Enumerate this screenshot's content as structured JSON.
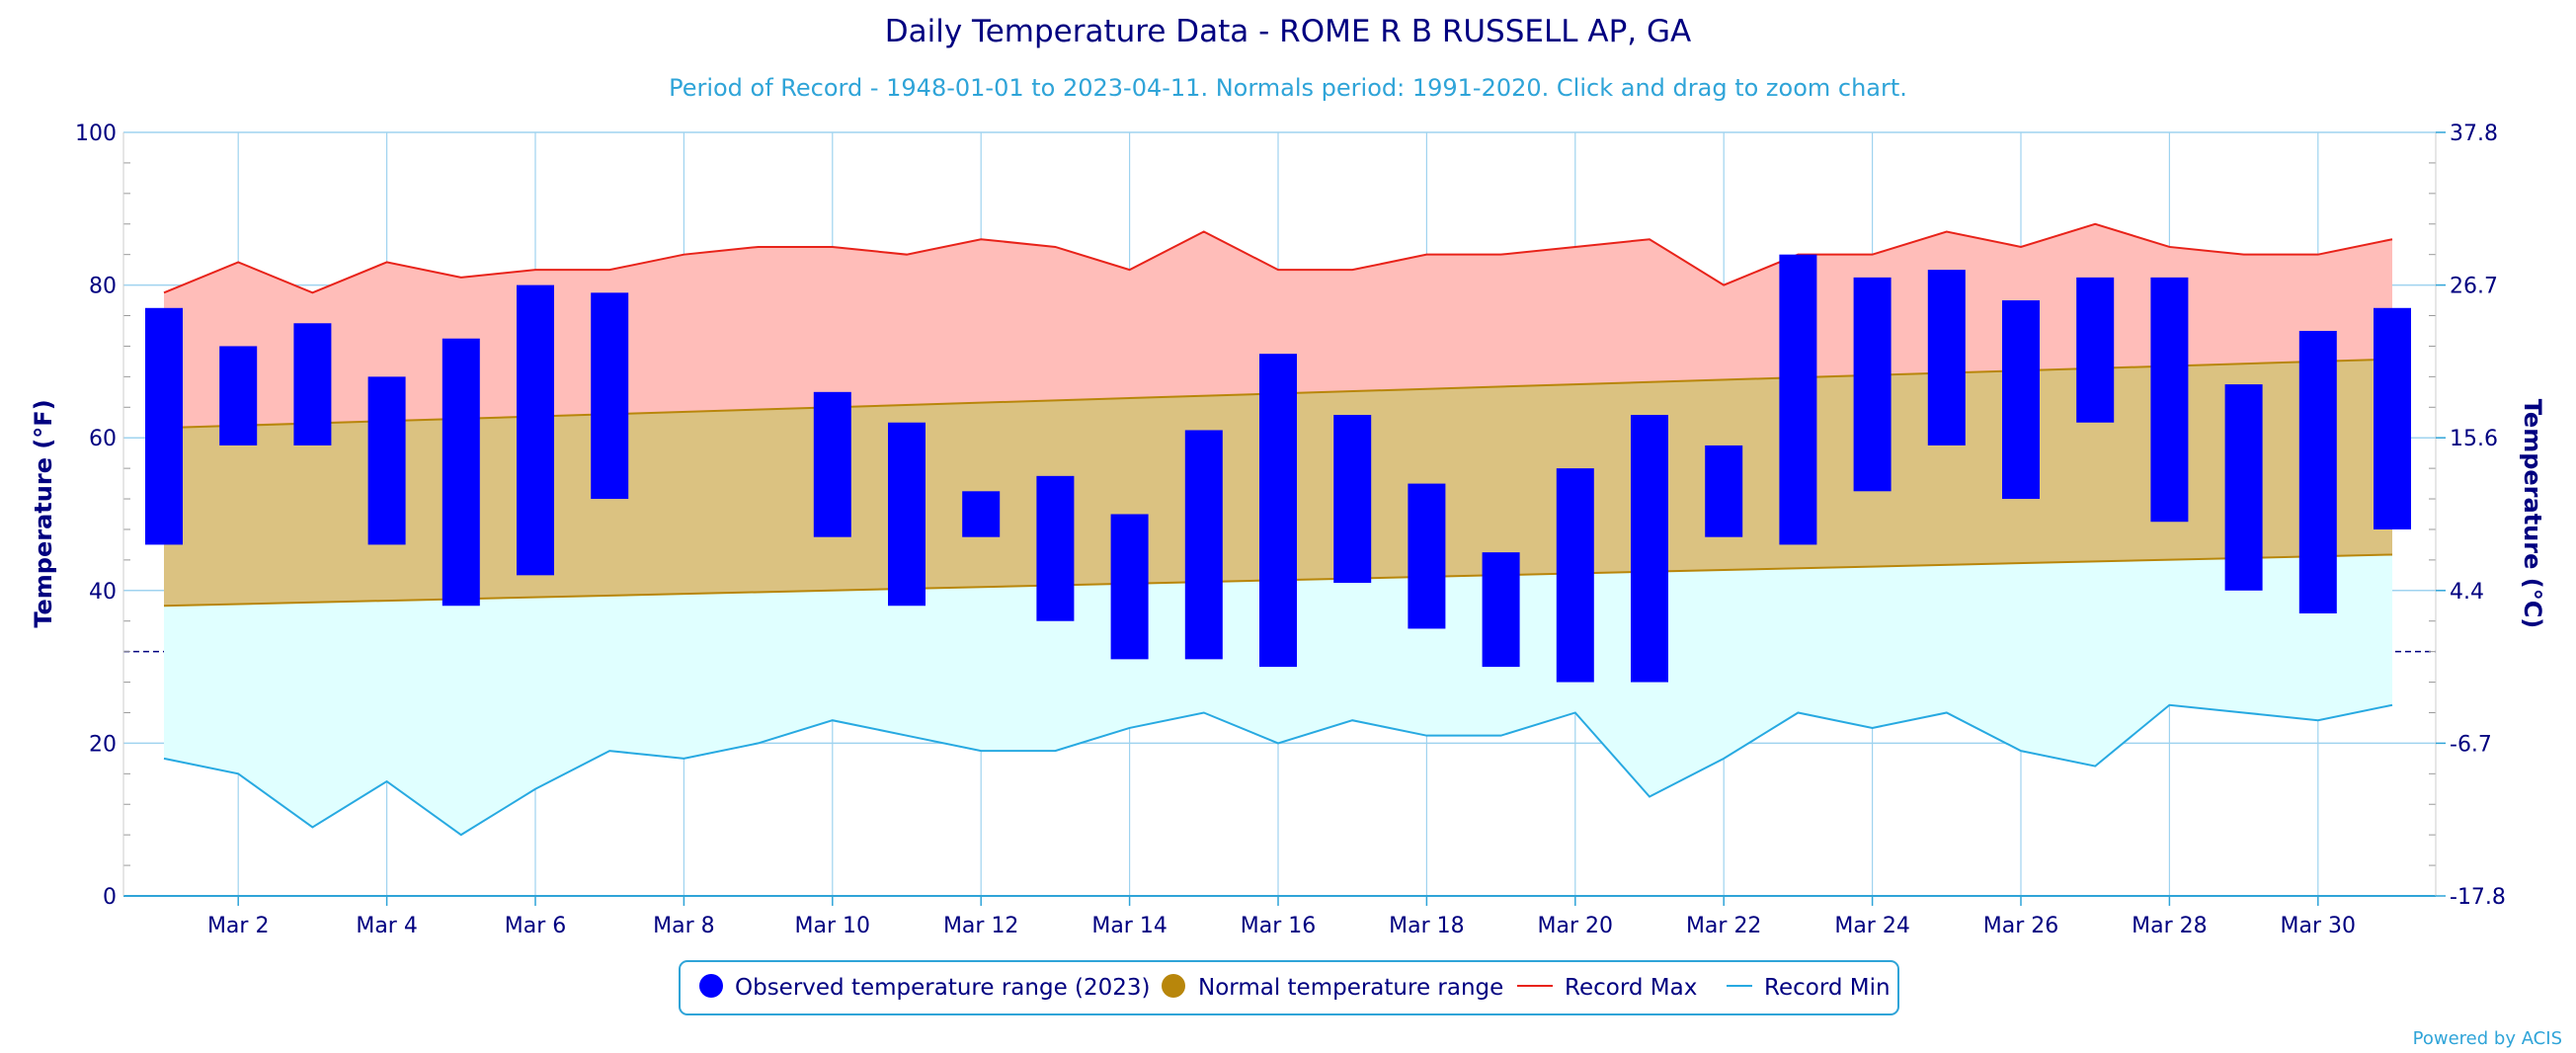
{
  "chart_data": {
    "type": "bar",
    "title": "Daily Temperature Data - ROME R B RUSSELL AP, GA",
    "subtitle": "Period of Record - 1948-01-01 to 2023-04-11. Normals period: 1991-2020. Click and drag to zoom chart.",
    "ylabel": "Temperature (°F)",
    "ylabel_right": "Temperature (°C)",
    "ylim": [
      0,
      100
    ],
    "x": [
      1,
      2,
      3,
      4,
      5,
      6,
      7,
      8,
      9,
      10,
      11,
      12,
      13,
      14,
      15,
      16,
      17,
      18,
      19,
      20,
      21,
      22,
      23,
      24,
      25,
      26,
      27,
      28,
      29,
      30,
      31
    ],
    "x_tick_labels": [
      "Mar 2",
      "Mar 4",
      "Mar 6",
      "Mar 8",
      "Mar 10",
      "Mar 12",
      "Mar 14",
      "Mar 16",
      "Mar 18",
      "Mar 20",
      "Mar 22",
      "Mar 24",
      "Mar 26",
      "Mar 28",
      "Mar 30"
    ],
    "x_tick_days": [
      2,
      4,
      6,
      8,
      10,
      12,
      14,
      16,
      18,
      20,
      22,
      24,
      26,
      28,
      30
    ],
    "y_ticks_left": [
      "0",
      "20",
      "40",
      "60",
      "80",
      "100"
    ],
    "y_ticks_right": [
      "-17.8",
      "-6.7",
      "4.4",
      "15.6",
      "26.7",
      "37.8"
    ],
    "freezing_line": 32,
    "series": [
      {
        "name": "Observed temperature range (2023)",
        "color": "#0000ff",
        "low": [
          46,
          59,
          59,
          46,
          38,
          42,
          52,
          null,
          null,
          47,
          38,
          47,
          36,
          31,
          31,
          30,
          41,
          35,
          30,
          28,
          28,
          47,
          46,
          53,
          59,
          52,
          62,
          49,
          40,
          37,
          48
        ],
        "high": [
          77,
          72,
          75,
          68,
          73,
          80,
          79,
          null,
          null,
          66,
          62,
          53,
          55,
          50,
          61,
          71,
          63,
          54,
          45,
          56,
          63,
          59,
          84,
          81,
          82,
          78,
          81,
          81,
          67,
          74,
          77
        ]
      },
      {
        "name": "Normal temperature range",
        "color": "#b8860b",
        "low_start": 38,
        "low_end": 44.7,
        "high_start": 61.3,
        "high_end": 70.3
      },
      {
        "name": "Record Max",
        "color": "#e8231a",
        "values": [
          79,
          83,
          79,
          83,
          81,
          82,
          82,
          84,
          85,
          85,
          84,
          86,
          85,
          82,
          87,
          82,
          82,
          84,
          84,
          85,
          86,
          80,
          84,
          84,
          87,
          85,
          88,
          85,
          84,
          84,
          86
        ]
      },
      {
        "name": "Record Min",
        "color": "#27a9e1",
        "values": [
          18,
          16,
          9,
          15,
          8,
          14,
          19,
          18,
          20,
          23,
          21,
          19,
          19,
          22,
          24,
          20,
          23,
          21,
          21,
          24,
          13,
          18,
          24,
          22,
          24,
          19,
          17,
          25,
          24,
          23,
          25
        ]
      }
    ],
    "legend_position": "bottom"
  },
  "credit": "Powered by ACIS"
}
